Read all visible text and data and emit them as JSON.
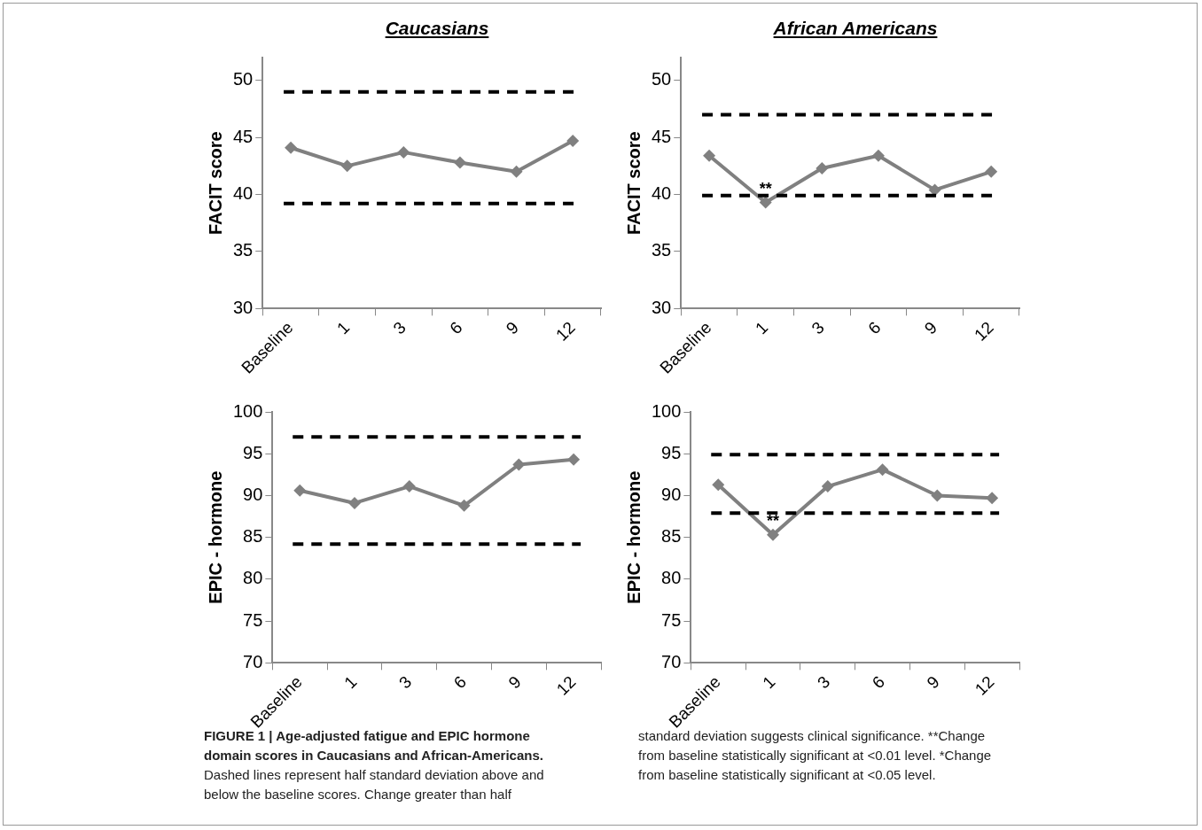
{
  "chart_data": [
    {
      "type": "line",
      "title": "Caucasians",
      "ylabel": "FACIT score",
      "categories": [
        "Baseline",
        "1",
        "3",
        "6",
        "9",
        "12"
      ],
      "series": [
        {
          "color": "#808080",
          "values": [
            44.1,
            42.5,
            43.7,
            42.8,
            42.0,
            44.7
          ]
        }
      ],
      "ylim": [
        30,
        52
      ],
      "yticks": [
        30,
        35,
        40,
        45,
        50
      ],
      "grid": false,
      "legend": false,
      "marker": "diamond",
      "line_style": "solid",
      "ref_lines": [
        {
          "axis": "y",
          "value": 49.0,
          "color": "#000000",
          "line_style": "dashed"
        },
        {
          "axis": "y",
          "value": 39.2,
          "color": "#000000",
          "line_style": "dashed"
        }
      ],
      "annotations": [
        "FIGURE 1 | Age-adjusted fatigue and EPIC hormone domain scores in Caucasians and African-Americans.",
        "Dashed lines represent half standard deviation above and below the baseline scores. Change greater than half standard deviation suggests clinical significance. **Change from baseline statistically significant at <0.01 level. *Change from baseline statistically significant at <0.05 level."
      ]
    },
    {
      "type": "line",
      "title": "African Americans",
      "ylabel": "FACIT score",
      "categories": [
        "Baseline",
        "1",
        "3",
        "6",
        "9",
        "12"
      ],
      "series": [
        {
          "color": "#808080",
          "values": [
            43.4,
            39.3,
            42.3,
            43.4,
            40.4,
            42.0
          ]
        }
      ],
      "ylim": [
        30,
        52
      ],
      "yticks": [
        30,
        35,
        40,
        45,
        50
      ],
      "grid": false,
      "legend": false,
      "marker": "diamond",
      "line_style": "solid",
      "ref_lines": [
        {
          "axis": "y",
          "value": 47.0,
          "color": "#000000",
          "line_style": "dashed"
        },
        {
          "axis": "y",
          "value": 39.9,
          "color": "#000000",
          "line_style": "dashed"
        }
      ],
      "annotations": [
        {
          "text": "**",
          "x": "1",
          "y": 39.3
        }
      ]
    },
    {
      "type": "line",
      "ylabel": "EPIC - hormone",
      "categories": [
        "Baseline",
        "1",
        "3",
        "6",
        "9",
        "12"
      ],
      "series": [
        {
          "color": "#808080",
          "values": [
            90.6,
            89.1,
            91.1,
            88.8,
            93.7,
            94.3
          ]
        }
      ],
      "ylim": [
        70,
        100
      ],
      "yticks": [
        70,
        75,
        80,
        85,
        90,
        95,
        100
      ],
      "grid": false,
      "legend": false,
      "marker": "diamond",
      "line_style": "solid",
      "ref_lines": [
        {
          "axis": "y",
          "value": 97.0,
          "color": "#000000",
          "line_style": "dashed"
        },
        {
          "axis": "y",
          "value": 84.2,
          "color": "#000000",
          "line_style": "dashed"
        }
      ]
    },
    {
      "type": "line",
      "ylabel": "EPIC - hormone",
      "categories": [
        "Baseline",
        "1",
        "3",
        "6",
        "9",
        "12"
      ],
      "series": [
        {
          "color": "#808080",
          "values": [
            91.3,
            85.3,
            91.1,
            93.1,
            90.0,
            89.7
          ]
        }
      ],
      "ylim": [
        70,
        100
      ],
      "yticks": [
        70,
        75,
        80,
        85,
        90,
        95,
        100
      ],
      "grid": false,
      "legend": false,
      "marker": "diamond",
      "line_style": "solid",
      "ref_lines": [
        {
          "axis": "y",
          "value": 94.9,
          "color": "#000000",
          "line_style": "dashed"
        },
        {
          "axis": "y",
          "value": 87.9,
          "color": "#000000",
          "line_style": "dashed"
        }
      ],
      "annotations": [
        {
          "text": "**",
          "x": "1",
          "y": 85.3
        }
      ]
    }
  ]
}
